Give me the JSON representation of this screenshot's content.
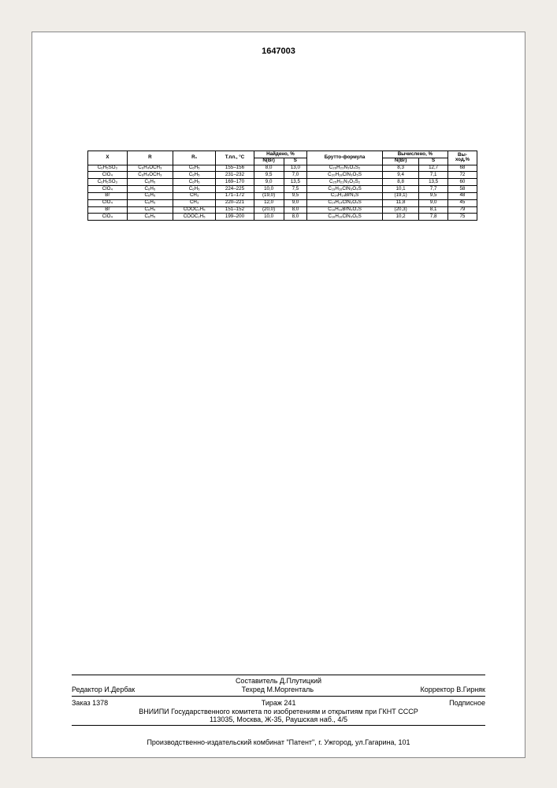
{
  "doc_number": "1647003",
  "table": {
    "header_row1": [
      "X",
      "R",
      "R₁",
      "Т.пл., °С",
      "Найдено, %",
      "",
      "Брутто-формула",
      "Вычислено, %",
      "",
      "Вы-"
    ],
    "header_row2": [
      "",
      "",
      "",
      "",
      "N(Br)",
      "S",
      "",
      "N(Br)",
      "S",
      "ход,%"
    ],
    "rows": [
      [
        "C₆H₅SO₃",
        "C₆H₄OCH₃",
        "C₆H₅",
        "155–156",
        "8,0",
        "13,0",
        "C₂₆H₂₃N₃O₄S₂",
        "8,3",
        "12,7",
        "68"
      ],
      [
        "ClO₄",
        "C₆H₄OCH₃",
        "C₆H₅",
        "231–232",
        "9,5",
        "7,0",
        "C₂₀H₁₈ClN₃O₅S",
        "9,4",
        "7,1",
        "72"
      ],
      [
        "C₆H₅SO₃",
        "C₆H₅",
        "C₆H₅",
        "169–170",
        "9,0",
        "13,5",
        "C₂₅H₂₁N₃O₃S₂",
        "8,8",
        "13,5",
        "60"
      ],
      [
        "ClO₄",
        "C₆H₅",
        "C₆H₅",
        "224–225",
        "10,0",
        "7,5",
        "C₁₉H₁₆ClN₃O₄S",
        "10,1",
        "7,7",
        "58"
      ],
      [
        "Br",
        "C₆H₅",
        "CH₃",
        "171–172",
        "(19,0)",
        "9,5",
        "C₁₄H₁₄BrN₃S",
        "(19,1)",
        "9,5",
        "48"
      ],
      [
        "ClO₄",
        "C₆H₅",
        "CH₃",
        "220–221",
        "12,0",
        "9,0",
        "C₁₄H₁₄ClN₃O₄S",
        "11,8",
        "9,0",
        "45"
      ],
      [
        "Br",
        "C₆H₅",
        "COOC₂H₅",
        "151–152",
        "(20,0)",
        "8,0",
        "C₁₆H₁₆BrN₃O₂S",
        "(20,3)",
        "8,1",
        "79"
      ],
      [
        "ClO₄",
        "C₆H₅",
        "COOC₂H₅",
        "199–200",
        "10,0",
        "8,0",
        "C₁₆H₁₆ClN₃O₆S",
        "10,2",
        "7,8",
        "75"
      ]
    ]
  },
  "footer": {
    "compiler": "Составитель Д.Плутицкий",
    "editor": "Редактор И.Дербак",
    "tech": "Техред М.Моргенталь",
    "corrector": "Корректор В.Гирняк",
    "order": "Заказ 1378",
    "tirage": "Тираж 241",
    "sub": "Подписное",
    "org": "ВНИИПИ Государственного комитета по изобретениям и открытиям при ГКНТ СССР",
    "addr": "113035, Москва, Ж-35, Раушская наб., 4/5",
    "printer": "Производственно-издательский комбинат \"Патент\", г. Ужгород, ул.Гагарина, 101"
  }
}
